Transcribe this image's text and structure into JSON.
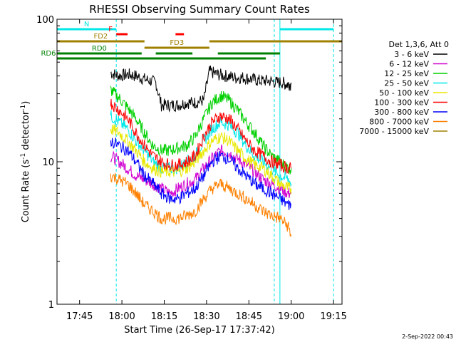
{
  "chart_data": {
    "type": "line",
    "title": "RHESSI Observing Summary Count Rates",
    "xlabel": "Start Time (26-Sep-17 17:37:42)",
    "ylabel_main": "Count Rate (s",
    "ylabel_sup1": "-1",
    "ylabel_mid": " detector",
    "ylabel_sup2": "-1",
    "ylabel_end": ")",
    "y_scale": "log",
    "ylim": [
      1,
      100
    ],
    "xlim": [
      "17:37",
      "19:18"
    ],
    "x_ticks": [
      "17:45",
      "18:00",
      "18:15",
      "18:30",
      "18:45",
      "19:00",
      "19:15"
    ],
    "y_ticks": [
      "1",
      "10",
      "100"
    ],
    "date_stamp": "2-Sep-2022 00:43",
    "legend_header": "Det 1,3,6, Att 0",
    "series": [
      {
        "name": "3 - 6 keV",
        "color": "#000000",
        "x": [
          "17:56",
          "17:59",
          "18:02",
          "18:05",
          "18:08",
          "18:10",
          "18:12",
          "18:14",
          "18:17",
          "18:20",
          "18:23",
          "18:26",
          "18:29",
          "18:31",
          "18:34",
          "18:37",
          "18:40",
          "18:43",
          "18:46",
          "18:49",
          "18:52",
          "18:55",
          "18:57",
          "18:58",
          "18:59",
          "19:00"
        ],
        "y": [
          42,
          40,
          41,
          40,
          38,
          37,
          36,
          25,
          25,
          25,
          26,
          26,
          27,
          43,
          41,
          40,
          39,
          39,
          38,
          37,
          37,
          36,
          36,
          35,
          35,
          35
        ]
      },
      {
        "name": "6 - 12 keV",
        "color": "#d000d0",
        "x": [
          "17:56",
          "17:59",
          "18:02",
          "18:05",
          "18:08",
          "18:11",
          "18:14",
          "18:17",
          "18:20",
          "18:23",
          "18:26",
          "18:29",
          "18:32",
          "18:35",
          "18:38",
          "18:41",
          "18:44",
          "18:47",
          "18:50",
          "18:53",
          "18:56",
          "18:59",
          "19:00"
        ],
        "y": [
          11,
          10,
          9,
          8,
          7.5,
          7,
          6.5,
          6,
          6.5,
          7,
          7.5,
          9,
          10.5,
          12,
          11.5,
          10.5,
          9.5,
          8.5,
          7.5,
          7,
          6.5,
          6,
          6
        ]
      },
      {
        "name": "12 - 25 keV",
        "color": "#00d000",
        "x": [
          "17:56",
          "17:59",
          "18:02",
          "18:05",
          "18:08",
          "18:11",
          "18:14",
          "18:17",
          "18:20",
          "18:23",
          "18:26",
          "18:29",
          "18:32",
          "18:35",
          "18:38",
          "18:41",
          "18:44",
          "18:47",
          "18:50",
          "18:53",
          "18:56",
          "18:59",
          "19:00"
        ],
        "y": [
          32,
          28,
          24,
          20,
          16,
          13,
          12,
          12,
          12.5,
          13,
          15,
          20,
          26,
          29,
          27,
          23,
          19,
          16,
          13,
          11,
          10,
          9,
          9
        ]
      },
      {
        "name": "25 - 50 keV",
        "color": "#00e8e8",
        "x": [
          "17:56",
          "17:59",
          "18:02",
          "18:05",
          "18:08",
          "18:11",
          "18:14",
          "18:17",
          "18:20",
          "18:23",
          "18:26",
          "18:29",
          "18:32",
          "18:35",
          "18:38",
          "18:41",
          "18:44",
          "18:47",
          "18:50",
          "18:53",
          "18:56",
          "18:59",
          "19:00"
        ],
        "y": [
          21,
          19,
          17,
          14,
          12,
          10,
          9,
          9,
          9,
          10,
          11,
          14,
          17,
          19,
          18,
          16,
          13,
          11,
          10,
          9,
          8,
          7.5,
          7
        ]
      },
      {
        "name": "50 - 100 keV",
        "color": "#e8e800",
        "x": [
          "17:56",
          "17:59",
          "18:02",
          "18:05",
          "18:08",
          "18:11",
          "18:14",
          "18:17",
          "18:20",
          "18:23",
          "18:26",
          "18:29",
          "18:32",
          "18:35",
          "18:38",
          "18:41",
          "18:44",
          "18:47",
          "18:50",
          "18:53",
          "18:56",
          "18:59",
          "19:00"
        ],
        "y": [
          17,
          16,
          14,
          12,
          10,
          9,
          8.5,
          8.5,
          8.5,
          9,
          10,
          12,
          14,
          15,
          14,
          12,
          10.5,
          9.5,
          9,
          8,
          7,
          6.5,
          6.5
        ]
      },
      {
        "name": "100 - 300 keV",
        "color": "#ff0000",
        "x": [
          "17:56",
          "17:59",
          "18:02",
          "18:05",
          "18:08",
          "18:11",
          "18:14",
          "18:17",
          "18:20",
          "18:23",
          "18:26",
          "18:29",
          "18:32",
          "18:35",
          "18:38",
          "18:41",
          "18:44",
          "18:47",
          "18:50",
          "18:53",
          "18:56",
          "18:59",
          "19:00"
        ],
        "y": [
          26,
          23,
          20,
          16,
          13,
          11,
          10,
          9.5,
          9.5,
          10,
          11,
          15,
          19,
          21,
          20,
          17,
          14,
          12,
          11,
          10,
          9.5,
          9,
          9
        ]
      },
      {
        "name": "300 - 800 keV",
        "color": "#0000ff",
        "x": [
          "17:56",
          "17:59",
          "18:02",
          "18:05",
          "18:08",
          "18:11",
          "18:14",
          "18:17",
          "18:20",
          "18:23",
          "18:26",
          "18:29",
          "18:32",
          "18:35",
          "18:38",
          "18:41",
          "18:44",
          "18:47",
          "18:50",
          "18:53",
          "18:56",
          "18:59",
          "19:00"
        ],
        "y": [
          14,
          13,
          12,
          10,
          8,
          7,
          6,
          5.5,
          5.5,
          6,
          6.5,
          8,
          10,
          11,
          10.5,
          9,
          8,
          7,
          6.5,
          6,
          5.5,
          5,
          5
        ]
      },
      {
        "name": "800 - 7000 keV",
        "color": "#ff8000",
        "x": [
          "17:56",
          "17:59",
          "18:02",
          "18:05",
          "18:08",
          "18:11",
          "18:14",
          "18:17",
          "18:20",
          "18:23",
          "18:26",
          "18:29",
          "18:32",
          "18:35",
          "18:38",
          "18:41",
          "18:44",
          "18:47",
          "18:50",
          "18:53",
          "18:56",
          "18:59",
          "19:00"
        ],
        "y": [
          8,
          7.5,
          7,
          6,
          5,
          4.5,
          4,
          4,
          4,
          4.2,
          4.5,
          5.5,
          6.5,
          7,
          6.5,
          6,
          5.5,
          5,
          4.5,
          4.2,
          4,
          3.5,
          3
        ]
      },
      {
        "name": "7000 - 15000 keV",
        "color": "#a08000",
        "x": [],
        "y": []
      }
    ],
    "flag_bars": [
      {
        "label": "N",
        "color": "#00e8e8",
        "segments": [
          [
            "17:37",
            "17:58"
          ],
          [
            "18:56",
            "19:15"
          ]
        ]
      },
      {
        "label": "F",
        "color": "#ff0000",
        "segments": [
          [
            "17:58",
            "18:02"
          ],
          [
            "18:19",
            "18:22"
          ]
        ]
      },
      {
        "label": "FD2",
        "color": "#a08000",
        "segments": [
          [
            "17:37",
            "18:08"
          ],
          [
            "18:31",
            "19:18"
          ]
        ]
      },
      {
        "label": "FD3",
        "color": "#a08000",
        "segments": [
          [
            "18:08",
            "18:31"
          ]
        ]
      },
      {
        "label": "RD0",
        "color": "#008000",
        "segments": [
          [
            "17:37",
            "18:07"
          ],
          [
            "18:12",
            "18:25"
          ],
          [
            "18:34",
            "18:56"
          ]
        ]
      },
      {
        "label": "RD6",
        "color": "#008000",
        "segments": [
          [
            "17:37",
            "18:21"
          ],
          [
            "18:20",
            "18:51"
          ]
        ]
      }
    ],
    "event_lines": [
      {
        "time": "17:37",
        "style": "solid"
      },
      {
        "time": "17:58",
        "style": "dashed"
      },
      {
        "time": "18:56",
        "style": "solid"
      },
      {
        "time": "18:54",
        "style": "dashed"
      },
      {
        "time": "19:15",
        "style": "dashed"
      }
    ]
  }
}
